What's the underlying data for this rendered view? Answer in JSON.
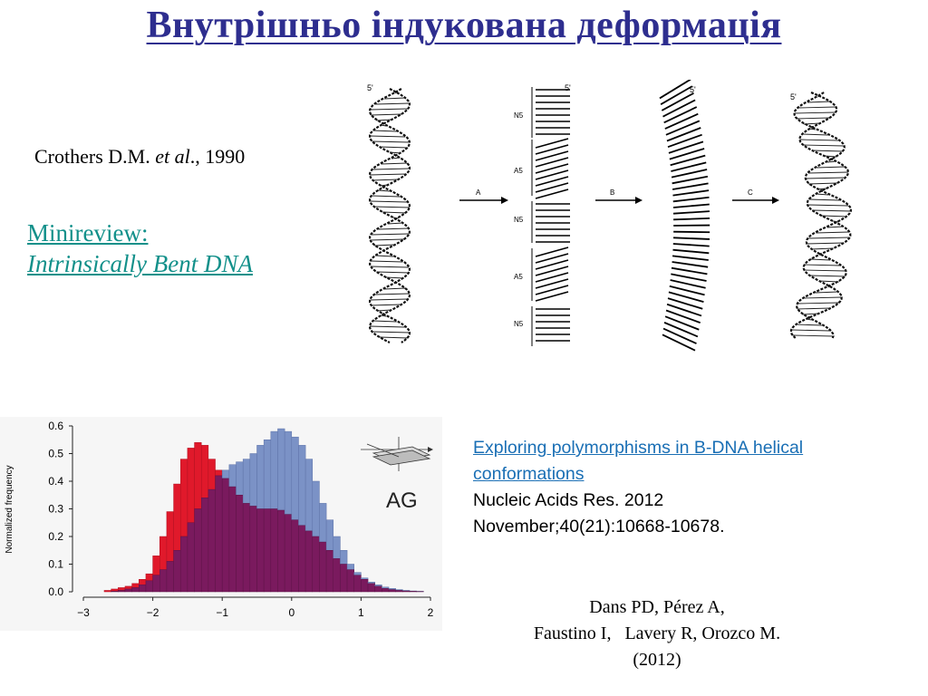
{
  "slide": {
    "title": "Внутрішньо індукована деформація",
    "citation": {
      "author": "Crothers D.M.",
      "etal": "et al",
      "year_suffix": "., 1990"
    },
    "minireview": {
      "line1": "Minireview: ",
      "line2": "Intrinsically Bent DNA",
      "color": "#12908a"
    },
    "dna_figure": {
      "top_label": "5'",
      "arrow_labels": [
        "A",
        "B",
        "C"
      ],
      "segment_labels": [
        "N5",
        "A5",
        "N5",
        "A5",
        "N5"
      ]
    },
    "paper": {
      "link_line1": "Exploring polymorphisms in B-DNA helical",
      "link_line2": "conformations",
      "journal": "Nucleic Acids Res. 2012",
      "issue": "November;40(21):10668-10678.",
      "link_color": "#1a6fb5"
    },
    "authors": {
      "line1": "Dans PD, Pérez A,",
      "line2": "Faustino I,   Lavery R, Orozco M.",
      "line3": "(2012)"
    }
  },
  "chart_data": {
    "type": "bar",
    "ylabel": "Normalized frequency",
    "xlabel": "",
    "inset_label": "AG",
    "xlim": [
      -3,
      2
    ],
    "ylim": [
      0,
      0.6
    ],
    "xticks": [
      "-3",
      "-2",
      "-1",
      "0",
      "1",
      "2"
    ],
    "yticks": [
      "0.0",
      "0.1",
      "0.2",
      "0.3",
      "0.4",
      "0.5",
      "0.6"
    ],
    "bin_width": 0.1,
    "x": [
      -2.75,
      -2.65,
      -2.55,
      -2.45,
      -2.35,
      -2.25,
      -2.15,
      -2.05,
      -1.95,
      -1.85,
      -1.75,
      -1.65,
      -1.55,
      -1.45,
      -1.35,
      -1.25,
      -1.15,
      -1.05,
      -0.95,
      -0.85,
      -0.75,
      -0.65,
      -0.55,
      -0.45,
      -0.35,
      -0.25,
      -0.15,
      -0.05,
      0.05,
      0.15,
      0.25,
      0.35,
      0.45,
      0.55,
      0.65,
      0.75,
      0.85,
      0.95,
      1.05,
      1.15,
      1.25,
      1.35,
      1.45,
      1.55,
      1.65,
      1.75,
      1.85
    ],
    "series": [
      {
        "color": "#e0192b",
        "values": [
          0.0,
          0.005,
          0.01,
          0.015,
          0.02,
          0.03,
          0.045,
          0.065,
          0.13,
          0.2,
          0.29,
          0.39,
          0.48,
          0.52,
          0.54,
          0.53,
          0.48,
          0.44,
          0.41,
          0.38,
          0.35,
          0.32,
          0.31,
          0.3,
          0.3,
          0.3,
          0.295,
          0.28,
          0.26,
          0.24,
          0.22,
          0.2,
          0.18,
          0.15,
          0.12,
          0.1,
          0.08,
          0.06,
          0.045,
          0.03,
          0.02,
          0.012,
          0.008,
          0.005,
          0.003,
          0.002,
          0.001
        ]
      },
      {
        "color": "#7b92c6",
        "values": [
          0.0,
          0.0,
          0.002,
          0.005,
          0.01,
          0.015,
          0.025,
          0.04,
          0.06,
          0.08,
          0.11,
          0.15,
          0.2,
          0.25,
          0.3,
          0.34,
          0.37,
          0.42,
          0.44,
          0.46,
          0.47,
          0.48,
          0.5,
          0.53,
          0.55,
          0.58,
          0.59,
          0.58,
          0.56,
          0.53,
          0.48,
          0.4,
          0.32,
          0.26,
          0.2,
          0.15,
          0.1,
          0.07,
          0.05,
          0.035,
          0.025,
          0.017,
          0.012,
          0.008,
          0.005,
          0.003,
          0.002
        ]
      }
    ]
  }
}
